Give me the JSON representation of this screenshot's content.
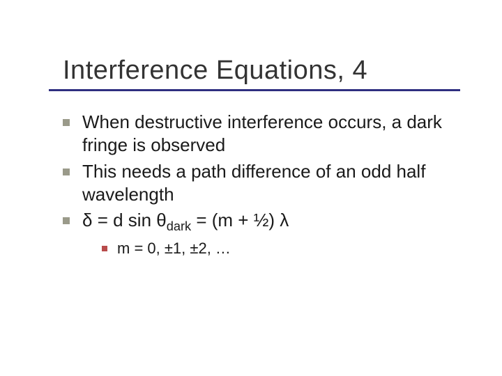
{
  "slide": {
    "title": "Interference Equations, 4",
    "title_fontsize": 38,
    "title_color": "#333333",
    "rule_color": "#2e2e80",
    "body_fontsize": 26,
    "body_color": "#1a1a1a",
    "bullet_color_l1": "#9a9a8a",
    "bullet_color_l2": "#b84b4b",
    "bullets": [
      "When destructive interference occurs, a dark fringe is observed",
      "This needs a path difference of an odd half wavelength"
    ],
    "equation": {
      "pre": "δ = d sin θ",
      "sub": "dark",
      "post": " = (m + ½) λ"
    },
    "sub_bullet": "m = 0, ±1, ±2, …",
    "background_color": "#ffffff"
  }
}
